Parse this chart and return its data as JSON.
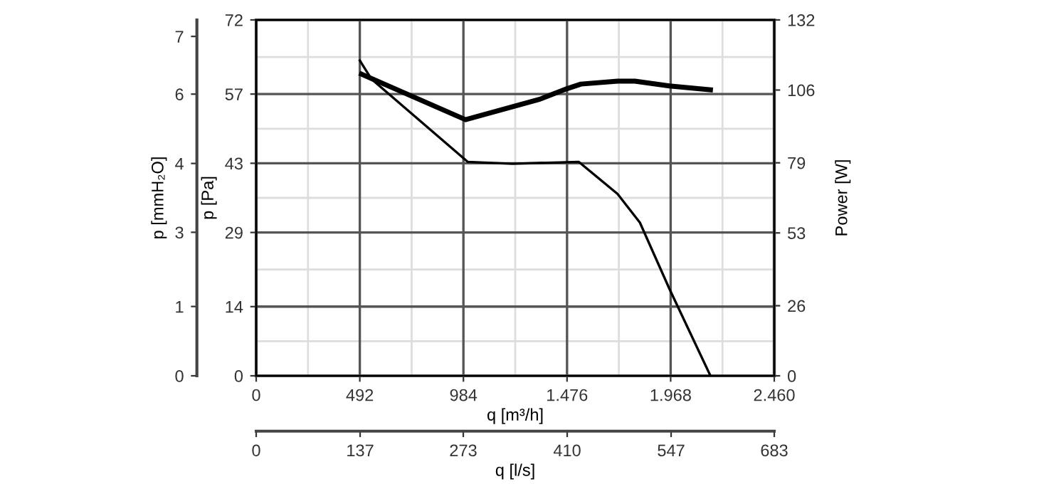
{
  "chart_data": {
    "type": "line",
    "xlabel": "q [m³/h]",
    "ylabel": "p [Pa]",
    "y2label": "Power [W]",
    "y3label": "p [mmH₂O]",
    "x2label": "q [l/s]",
    "xlim": [
      0,
      2460
    ],
    "xticks": [
      0,
      492,
      984,
      {
        "value": 1476,
        "label": "1.476"
      },
      {
        "value": 1968,
        "label": "1.968"
      },
      {
        "value": 2460,
        "label": "2.460"
      }
    ],
    "x2lim": [
      0,
      683
    ],
    "x2ticks": [
      0,
      137,
      273,
      410,
      547,
      683
    ],
    "ylim": [
      0,
      72
    ],
    "yticks": [
      0,
      14,
      29,
      43,
      57,
      72
    ],
    "y2lim": [
      0,
      132
    ],
    "y2ticks": [
      0,
      26,
      53,
      79,
      106,
      132
    ],
    "y3lim": [
      0,
      7.34
    ],
    "y3ticks": [
      0,
      {
        "value": 1.43,
        "label": "1"
      },
      {
        "value": 2.96,
        "label": "3"
      },
      {
        "value": 4.38,
        "label": "4"
      },
      {
        "value": 5.81,
        "label": "6"
      },
      7
    ],
    "grid": true,
    "marker": "none",
    "line_style": "solid",
    "series": [
      {
        "color": "#000000",
        "axis": "y",
        "x": [
          492,
          548,
          1004,
          1217,
          1531,
          1716,
          1822,
          1962,
          2157
        ],
        "values": [
          63.8,
          60.0,
          43.3,
          42.9,
          43.3,
          36.8,
          31.0,
          17.6,
          0
        ]
      },
      {
        "color": "#000000",
        "axis": "y2",
        "x": [
          500,
          994,
          1347,
          1476,
          1542,
          1716,
          1798,
          1962,
          2157
        ],
        "values": [
          111.9,
          95.0,
          102.6,
          106.5,
          108.2,
          109.3,
          109.3,
          107.5,
          106.1
        ]
      }
    ]
  }
}
